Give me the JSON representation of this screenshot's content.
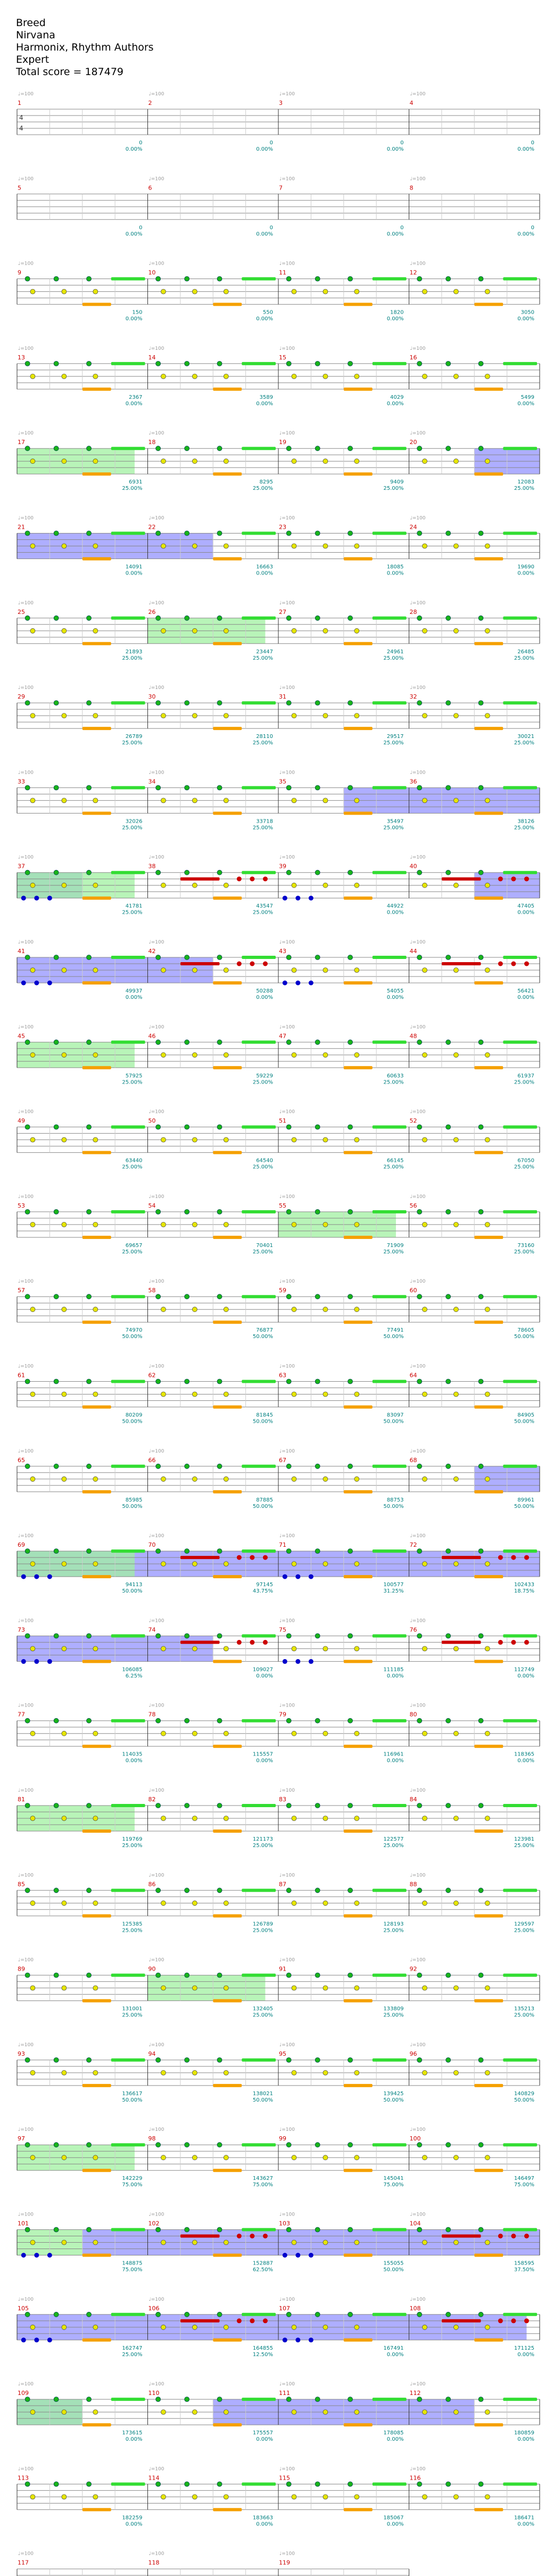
{
  "header": {
    "song": "Breed",
    "artist": "Nirvana",
    "authors": "Harmonix, Rhythm Authors",
    "difficulty": "Expert",
    "total_score": "Total score = 187479"
  },
  "colors": {
    "green_note": "#19b419",
    "red_note": "#cc0000",
    "yellow_note": "#e6e600",
    "blue_note": "#0000cc",
    "orange_bar": "#f5a000",
    "sustain_green": "#33dd33",
    "starpower": "#a0f0a0",
    "overdrive": "#a0a0ff",
    "score_text": "#008080",
    "measure_number": "#cc0000",
    "tempo_text": "#999999"
  },
  "tempo_marker": "♩=100",
  "time_signature": "4/4",
  "rows": [
    {
      "measures": [
        "1",
        "2",
        "3",
        "4"
      ],
      "scores": [
        "0",
        "0",
        "0",
        "0"
      ],
      "pcts": [
        "0.00%",
        "0.00%",
        "0.00%",
        "0.00%"
      ],
      "empty": true
    },
    {
      "measures": [
        "5",
        "6",
        "7",
        "8"
      ],
      "scores": [
        "0",
        "0",
        "0",
        "0"
      ],
      "pcts": [
        "0.00%",
        "0.00%",
        "0.00%",
        "0.00%"
      ],
      "empty": true
    },
    {
      "measures": [
        "9",
        "10",
        "11",
        "12"
      ],
      "scores": [
        "150",
        "550",
        "1820",
        "3050"
      ],
      "pcts": [
        "0.00%",
        "0.00%",
        "0.00%",
        "0.00%"
      ]
    },
    {
      "measures": [
        "13",
        "14",
        "15",
        "16"
      ],
      "scores": [
        "2367",
        "3589",
        "4029",
        "5499"
      ],
      "pcts": [
        "0.00%",
        "0.00%",
        "0.00%",
        "0.00%"
      ]
    },
    {
      "measures": [
        "17",
        "18",
        "19",
        "20"
      ],
      "scores": [
        "6931",
        "8295",
        "9409",
        "12083"
      ],
      "pcts": [
        "25.00%",
        "25.00%",
        "25.00%",
        "25.00%"
      ],
      "sp": [
        [
          0,
          0.9
        ]
      ],
      "od": [
        [
          3.5,
          4
        ]
      ]
    },
    {
      "measures": [
        "21",
        "22",
        "23",
        "24"
      ],
      "scores": [
        "14091",
        "16663",
        "18085",
        "19690"
      ],
      "pcts": [
        "0.00%",
        "0.00%",
        "0.00%",
        "0.00%"
      ],
      "od": [
        [
          0,
          1.5
        ]
      ]
    },
    {
      "measures": [
        "25",
        "26",
        "27",
        "28"
      ],
      "scores": [
        "21893",
        "23447",
        "24961",
        "26485"
      ],
      "pcts": [
        "25.00%",
        "25.00%",
        "25.00%",
        "25.00%"
      ],
      "sp": [
        [
          1,
          1.9
        ]
      ]
    },
    {
      "measures": [
        "29",
        "30",
        "31",
        "32"
      ],
      "scores": [
        "26789",
        "28110",
        "29517",
        "30021"
      ],
      "pcts": [
        "25.00%",
        "25.00%",
        "25.00%",
        "25.00%"
      ]
    },
    {
      "measures": [
        "33",
        "34",
        "35",
        "36"
      ],
      "scores": [
        "32026",
        "33718",
        "35497",
        "38126"
      ],
      "pcts": [
        "25.00%",
        "25.00%",
        "25.00%",
        "25.00%"
      ],
      "od": [
        [
          2.5,
          4
        ]
      ]
    },
    {
      "measures": [
        "37",
        "38",
        "39",
        "40"
      ],
      "scores": [
        "41781",
        "43547",
        "44922",
        "47405"
      ],
      "pcts": [
        "25.00%",
        "25.00%",
        "0.00%",
        "0.00%"
      ],
      "sp": [
        [
          0,
          0.9
        ]
      ],
      "od": [
        [
          0,
          0.5
        ],
        [
          3.5,
          4
        ]
      ],
      "riff": true
    },
    {
      "measures": [
        "41",
        "42",
        "43",
        "44"
      ],
      "scores": [
        "49937",
        "50288",
        "54055",
        "56421"
      ],
      "pcts": [
        "0.00%",
        "0.00%",
        "0.00%",
        "0.00%"
      ],
      "od": [
        [
          0,
          1.5
        ]
      ],
      "riff": true
    },
    {
      "measures": [
        "45",
        "46",
        "47",
        "48"
      ],
      "scores": [
        "57925",
        "59229",
        "60633",
        "61937"
      ],
      "pcts": [
        "25.00%",
        "25.00%",
        "25.00%",
        "25.00%"
      ],
      "sp": [
        [
          0,
          0.9
        ]
      ]
    },
    {
      "measures": [
        "49",
        "50",
        "51",
        "52"
      ],
      "scores": [
        "63440",
        "64540",
        "66145",
        "67050"
      ],
      "pcts": [
        "25.00%",
        "25.00%",
        "25.00%",
        "25.00%"
      ]
    },
    {
      "measures": [
        "53",
        "54",
        "55",
        "56"
      ],
      "scores": [
        "69657",
        "70401",
        "71909",
        "73160"
      ],
      "pcts": [
        "25.00%",
        "25.00%",
        "25.00%",
        "25.00%"
      ],
      "sp": [
        [
          2,
          2.9
        ]
      ]
    },
    {
      "measures": [
        "57",
        "58",
        "59",
        "60"
      ],
      "scores": [
        "74970",
        "76877",
        "77491",
        "78605"
      ],
      "pcts": [
        "50.00%",
        "50.00%",
        "50.00%",
        "50.00%"
      ]
    },
    {
      "measures": [
        "61",
        "62",
        "63",
        "64"
      ],
      "scores": [
        "80209",
        "81845",
        "83097",
        "84905"
      ],
      "pcts": [
        "50.00%",
        "50.00%",
        "50.00%",
        "50.00%"
      ]
    },
    {
      "measures": [
        "65",
        "66",
        "67",
        "68"
      ],
      "scores": [
        "85985",
        "87885",
        "88753",
        "89961"
      ],
      "pcts": [
        "50.00%",
        "50.00%",
        "50.00%",
        "50.00%"
      ],
      "od": [
        [
          3.5,
          4
        ]
      ]
    },
    {
      "measures": [
        "69",
        "70",
        "71",
        "72"
      ],
      "scores": [
        "94113",
        "97145",
        "100577",
        "102433"
      ],
      "pcts": [
        "50.00%",
        "43.75%",
        "31.25%",
        "18.75%"
      ],
      "od": [
        [
          0,
          4
        ]
      ],
      "sp": [
        [
          0,
          0.9
        ]
      ],
      "riff": true
    },
    {
      "measures": [
        "73",
        "74",
        "75",
        "76"
      ],
      "scores": [
        "106085",
        "109027",
        "111185",
        "112749"
      ],
      "pcts": [
        "6.25%",
        "0.00%",
        "0.00%",
        "0.00%"
      ],
      "od": [
        [
          0,
          1.5
        ]
      ],
      "riff": true
    },
    {
      "measures": [
        "77",
        "78",
        "79",
        "80"
      ],
      "scores": [
        "114035",
        "115557",
        "116961",
        "118365"
      ],
      "pcts": [
        "0.00%",
        "0.00%",
        "0.00%",
        "0.00%"
      ]
    },
    {
      "measures": [
        "81",
        "82",
        "83",
        "84"
      ],
      "scores": [
        "119769",
        "121173",
        "122577",
        "123981"
      ],
      "pcts": [
        "25.00%",
        "25.00%",
        "25.00%",
        "25.00%"
      ],
      "sp": [
        [
          0,
          0.9
        ]
      ]
    },
    {
      "measures": [
        "85",
        "86",
        "87",
        "88"
      ],
      "scores": [
        "125385",
        "126789",
        "128193",
        "129597"
      ],
      "pcts": [
        "25.00%",
        "25.00%",
        "25.00%",
        "25.00%"
      ]
    },
    {
      "measures": [
        "89",
        "90",
        "91",
        "92"
      ],
      "scores": [
        "131001",
        "132405",
        "133809",
        "135213"
      ],
      "pcts": [
        "25.00%",
        "25.00%",
        "25.00%",
        "25.00%"
      ],
      "sp": [
        [
          1,
          1.9
        ]
      ]
    },
    {
      "measures": [
        "93",
        "94",
        "95",
        "96"
      ],
      "scores": [
        "136617",
        "138021",
        "139425",
        "140829"
      ],
      "pcts": [
        "50.00%",
        "50.00%",
        "50.00%",
        "50.00%"
      ]
    },
    {
      "measures": [
        "97",
        "98",
        "99",
        "100"
      ],
      "scores": [
        "142229",
        "143627",
        "145041",
        "146497"
      ],
      "pcts": [
        "75.00%",
        "75.00%",
        "75.00%",
        "75.00%"
      ],
      "sp": [
        [
          0,
          0.9
        ]
      ]
    },
    {
      "measures": [
        "101",
        "102",
        "103",
        "104"
      ],
      "scores": [
        "148875",
        "152887",
        "155055",
        "158595"
      ],
      "pcts": [
        "75.00%",
        "62.50%",
        "50.00%",
        "37.50%"
      ],
      "sp": [
        [
          0,
          0.5
        ]
      ],
      "od": [
        [
          0.5,
          4
        ]
      ],
      "riff": true
    },
    {
      "measures": [
        "105",
        "106",
        "107",
        "108"
      ],
      "scores": [
        "162747",
        "164855",
        "167491",
        "171125"
      ],
      "pcts": [
        "25.00%",
        "12.50%",
        "0.00%",
        "0.00%"
      ],
      "od": [
        [
          0,
          3.9
        ]
      ],
      "riff": true
    },
    {
      "measures": [
        "109",
        "110",
        "111",
        "112"
      ],
      "scores": [
        "173615",
        "175557",
        "178085",
        "180859"
      ],
      "pcts": [
        "0.00%",
        "0.00%",
        "0.00%",
        "0.00%"
      ],
      "sp": [
        [
          0,
          0.5
        ]
      ],
      "od": [
        [
          0,
          0.5
        ],
        [
          1.5,
          3.5
        ]
      ]
    },
    {
      "measures": [
        "113",
        "114",
        "115",
        "116"
      ],
      "scores": [
        "182259",
        "183663",
        "185067",
        "186471"
      ],
      "pcts": [
        "0.00%",
        "0.00%",
        "0.00%",
        "0.00%"
      ]
    },
    {
      "measures": [
        "117",
        "118",
        "119"
      ],
      "scores": [
        "186875",
        "187433",
        "187479"
      ],
      "pcts": [
        "0.00%",
        "0.00%",
        "0.00%"
      ],
      "final": true
    }
  ]
}
